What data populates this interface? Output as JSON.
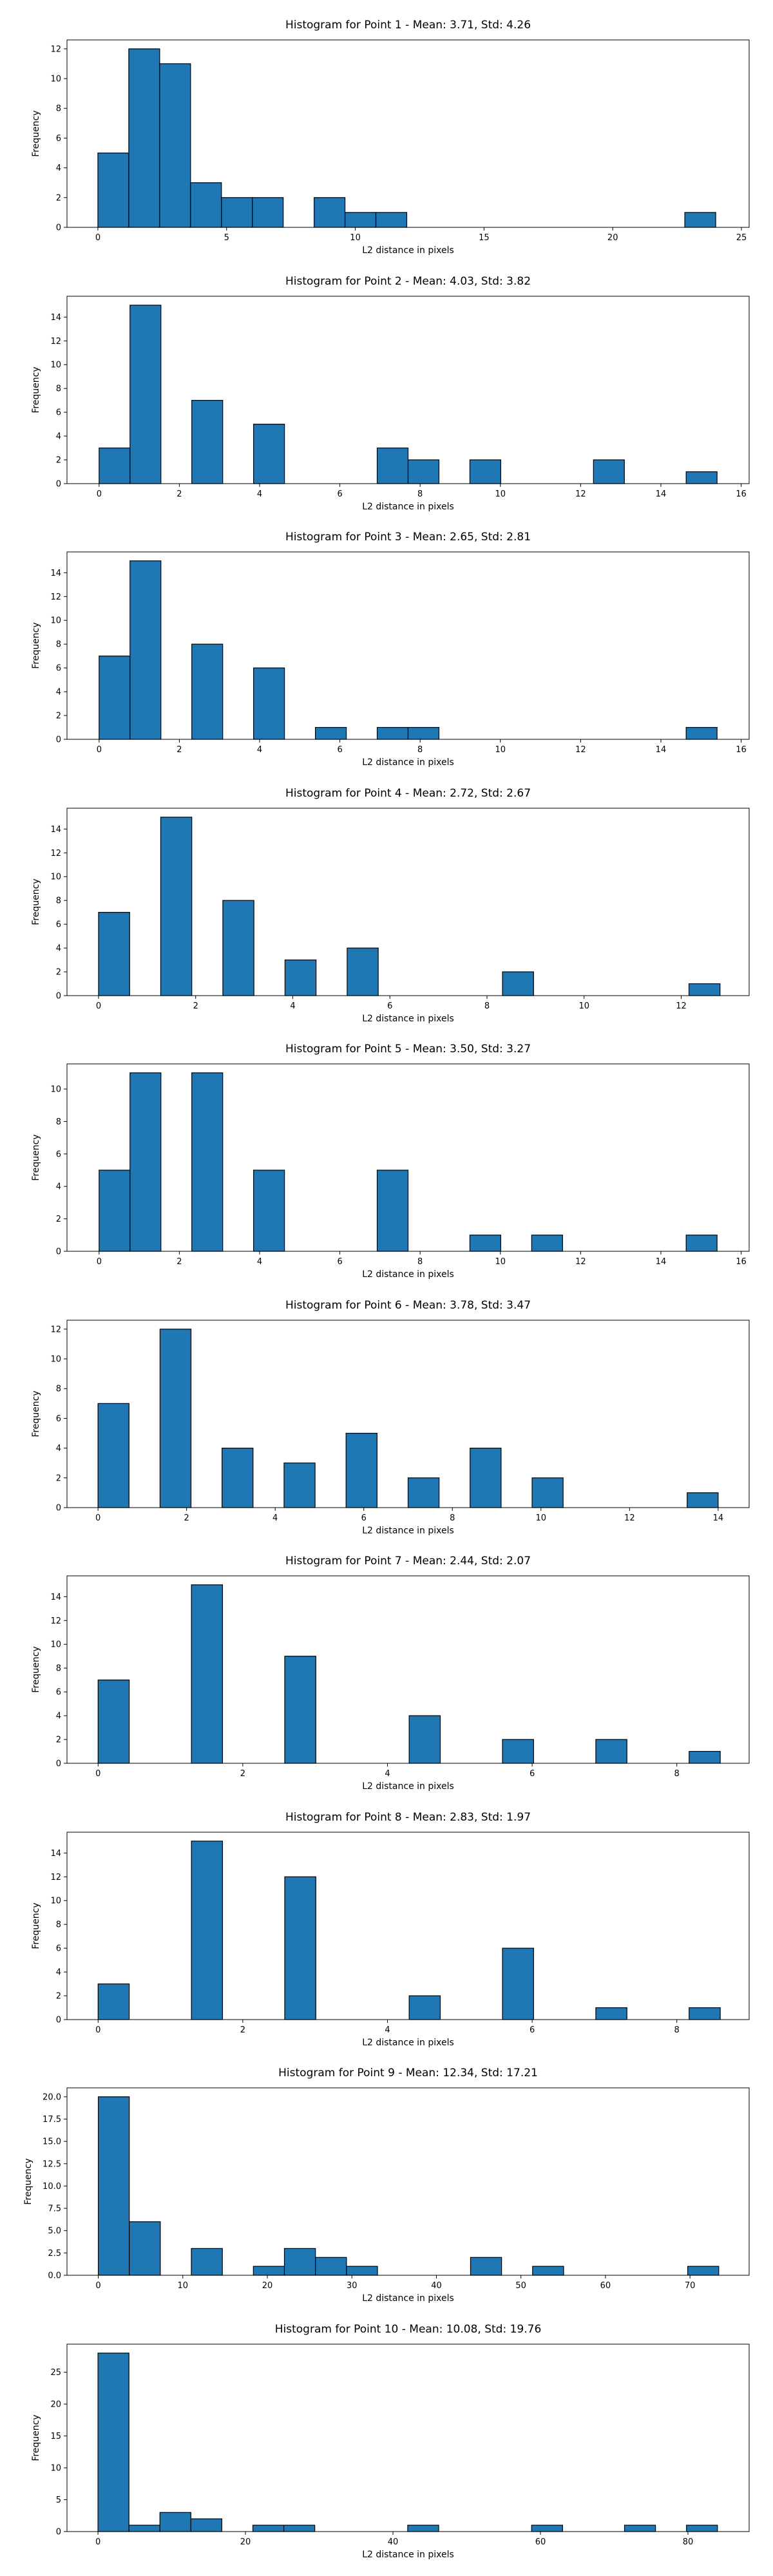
{
  "chart_data": [
    {
      "type": "bar",
      "title": "Histogram for Point 1 - Mean: 3.71, Std: 4.26",
      "xlabel": "L2 distance in pixels",
      "ylabel": "Frequency",
      "xlim": [
        -1.2,
        25.3
      ],
      "ylim": [
        0,
        12.6
      ],
      "xticks": [
        0,
        5,
        10,
        15,
        20,
        25
      ],
      "yticks": [
        0,
        2,
        4,
        6,
        8,
        10,
        12
      ],
      "bin_width": 1.2,
      "bin_starts": [
        0,
        1.2,
        2.4,
        3.6,
        4.8,
        6.0,
        8.4,
        9.6,
        10.8,
        22.8
      ],
      "values": [
        5,
        12,
        11,
        3,
        2,
        2,
        2,
        1,
        1,
        1
      ]
    },
    {
      "type": "bar",
      "title": "Histogram for Point 2 - Mean: 4.03, Std: 3.82",
      "xlabel": "L2 distance in pixels",
      "ylabel": "Frequency",
      "xlim": [
        -0.8,
        16.2
      ],
      "ylim": [
        0,
        15.75
      ],
      "xticks": [
        0,
        2,
        4,
        6,
        8,
        10,
        12,
        14,
        16
      ],
      "yticks": [
        0,
        2,
        4,
        6,
        8,
        10,
        12,
        14
      ],
      "bin_width": 0.77,
      "bin_starts": [
        0,
        0.77,
        2.31,
        3.85,
        6.93,
        7.7,
        9.24,
        12.32,
        14.63
      ],
      "values": [
        3,
        15,
        7,
        5,
        3,
        2,
        2,
        2,
        1
      ]
    },
    {
      "type": "bar",
      "title": "Histogram for Point 3 - Mean: 2.65, Std: 2.81",
      "xlabel": "L2 distance in pixels",
      "ylabel": "Frequency",
      "xlim": [
        -0.8,
        16.2
      ],
      "ylim": [
        0,
        15.75
      ],
      "xticks": [
        0,
        2,
        4,
        6,
        8,
        10,
        12,
        14,
        16
      ],
      "yticks": [
        0,
        2,
        4,
        6,
        8,
        10,
        12,
        14
      ],
      "bin_width": 0.77,
      "bin_starts": [
        0,
        0.77,
        2.31,
        3.85,
        5.39,
        6.93,
        7.7,
        14.63
      ],
      "values": [
        7,
        15,
        8,
        6,
        1,
        1,
        1,
        1
      ]
    },
    {
      "type": "bar",
      "title": "Histogram for Point 4 - Mean: 2.72, Std: 2.67",
      "xlabel": "L2 distance in pixels",
      "ylabel": "Frequency",
      "xlim": [
        -0.65,
        13.4
      ],
      "ylim": [
        0,
        15.75
      ],
      "xticks": [
        0,
        2,
        4,
        6,
        8,
        10,
        12
      ],
      "yticks": [
        0,
        2,
        4,
        6,
        8,
        10,
        12,
        14
      ],
      "bin_width": 0.64,
      "bin_starts": [
        0,
        1.28,
        2.56,
        3.84,
        5.12,
        8.32,
        12.16
      ],
      "values": [
        7,
        15,
        8,
        3,
        4,
        2,
        1
      ]
    },
    {
      "type": "bar",
      "title": "Histogram for Point 5 - Mean: 3.50, Std: 3.27",
      "xlabel": "L2 distance in pixels",
      "ylabel": "Frequency",
      "xlim": [
        -0.8,
        16.2
      ],
      "ylim": [
        0,
        11.55
      ],
      "xticks": [
        0,
        2,
        4,
        6,
        8,
        10,
        12,
        14,
        16
      ],
      "yticks": [
        0,
        2,
        4,
        6,
        8,
        10
      ],
      "bin_width": 0.77,
      "bin_starts": [
        0,
        0.77,
        2.31,
        3.85,
        6.93,
        9.24,
        10.78,
        14.63
      ],
      "values": [
        5,
        11,
        11,
        5,
        5,
        1,
        1,
        1
      ]
    },
    {
      "type": "bar",
      "title": "Histogram for Point 6 - Mean: 3.78, Std: 3.47",
      "xlabel": "L2 distance in pixels",
      "ylabel": "Frequency",
      "xlim": [
        -0.7,
        14.7
      ],
      "ylim": [
        0,
        12.6
      ],
      "xticks": [
        0,
        2,
        4,
        6,
        8,
        10,
        12,
        14
      ],
      "yticks": [
        0,
        2,
        4,
        6,
        8,
        10,
        12
      ],
      "bin_width": 0.7,
      "bin_starts": [
        0,
        1.4,
        2.8,
        4.2,
        5.6,
        7.0,
        8.4,
        9.8,
        13.3
      ],
      "values": [
        7,
        12,
        4,
        3,
        5,
        2,
        4,
        2,
        1
      ]
    },
    {
      "type": "bar",
      "title": "Histogram for Point 7 - Mean: 2.44, Std: 2.07",
      "xlabel": "L2 distance in pixels",
      "ylabel": "Frequency",
      "xlim": [
        -0.43,
        9.0
      ],
      "ylim": [
        0,
        15.75
      ],
      "xticks": [
        0,
        2,
        4,
        6,
        8
      ],
      "yticks": [
        0,
        2,
        4,
        6,
        8,
        10,
        12,
        14
      ],
      "bin_width": 0.43,
      "bin_starts": [
        0,
        1.29,
        2.58,
        4.3,
        5.59,
        6.88,
        8.17
      ],
      "values": [
        7,
        15,
        9,
        4,
        2,
        2,
        1
      ]
    },
    {
      "type": "bar",
      "title": "Histogram for Point 8 - Mean: 2.83, Std: 1.97",
      "xlabel": "L2 distance in pixels",
      "ylabel": "Frequency",
      "xlim": [
        -0.43,
        9.0
      ],
      "ylim": [
        0,
        15.75
      ],
      "xticks": [
        0,
        2,
        4,
        6,
        8
      ],
      "yticks": [
        0,
        2,
        4,
        6,
        8,
        10,
        12,
        14
      ],
      "bin_width": 0.43,
      "bin_starts": [
        0,
        1.29,
        2.58,
        4.3,
        5.59,
        6.88,
        8.17
      ],
      "values": [
        3,
        15,
        12,
        2,
        6,
        1,
        1
      ]
    },
    {
      "type": "bar",
      "title": "Histogram for Point 9 - Mean: 12.34, Std: 17.21",
      "xlabel": "L2 distance in pixels",
      "ylabel": "Frequency",
      "xlim": [
        -3.7,
        77.0
      ],
      "ylim": [
        0,
        21.0
      ],
      "xticks": [
        0,
        10,
        20,
        30,
        40,
        50,
        60,
        70
      ],
      "yticks": [
        0.0,
        2.5,
        5.0,
        7.5,
        10.0,
        12.5,
        15.0,
        17.5,
        20.0
      ],
      "ytick_labels": [
        "0.0",
        "2.5",
        "5.0",
        "7.5",
        "10.0",
        "12.5",
        "15.0",
        "17.5",
        "20.0"
      ],
      "bin_width": 3.67,
      "bin_starts": [
        0,
        3.67,
        11.01,
        18.35,
        22.02,
        25.69,
        29.36,
        44.04,
        51.38,
        69.73
      ],
      "values": [
        20,
        6,
        3,
        1,
        3,
        2,
        1,
        2,
        1,
        1
      ]
    },
    {
      "type": "bar",
      "title": "Histogram for Point 10 - Mean: 10.08, Std: 19.76",
      "xlabel": "L2 distance in pixels",
      "ylabel": "Frequency",
      "xlim": [
        -4.2,
        88.3
      ],
      "ylim": [
        0,
        29.4
      ],
      "xticks": [
        0,
        20,
        40,
        60,
        80
      ],
      "yticks": [
        0,
        5,
        10,
        15,
        20,
        25
      ],
      "bin_width": 4.2,
      "bin_starts": [
        0,
        4.2,
        8.4,
        12.6,
        21.0,
        25.2,
        42.0,
        58.8,
        71.4,
        79.8
      ],
      "values": [
        28,
        1,
        3,
        2,
        1,
        1,
        1,
        1,
        1,
        1
      ]
    }
  ]
}
